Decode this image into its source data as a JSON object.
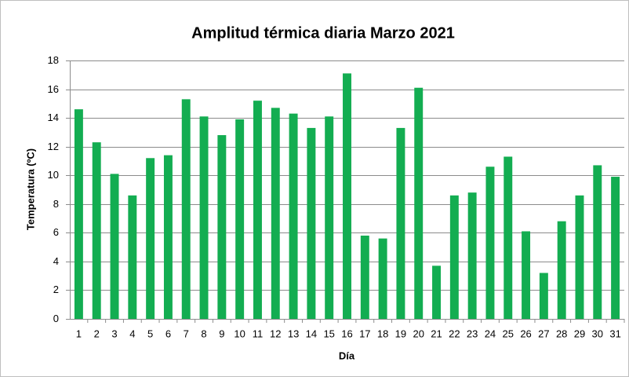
{
  "chart_data": {
    "type": "bar",
    "title": "Amplitud térmica diaria Marzo 2021",
    "x_label": "Día",
    "y_label": "Temperatura (ºC)",
    "categories": [
      "1",
      "2",
      "3",
      "4",
      "5",
      "6",
      "7",
      "8",
      "9",
      "10",
      "11",
      "12",
      "13",
      "14",
      "15",
      "16",
      "17",
      "18",
      "19",
      "20",
      "21",
      "22",
      "23",
      "24",
      "25",
      "26",
      "27",
      "28",
      "29",
      "30",
      "31"
    ],
    "values": [
      14.6,
      12.3,
      10.1,
      8.6,
      11.2,
      11.4,
      15.3,
      14.1,
      12.8,
      13.9,
      15.2,
      14.7,
      14.3,
      13.3,
      14.1,
      17.1,
      5.8,
      5.6,
      13.3,
      16.1,
      3.7,
      8.6,
      8.8,
      10.6,
      11.3,
      6.1,
      3.2,
      6.8,
      8.6,
      10.7,
      9.9
    ],
    "color": "#13ad51",
    "ylim": [
      0,
      18
    ],
    "yticks": [
      0,
      2,
      4,
      6,
      8,
      10,
      12,
      14,
      16,
      18
    ],
    "grid": true
  }
}
